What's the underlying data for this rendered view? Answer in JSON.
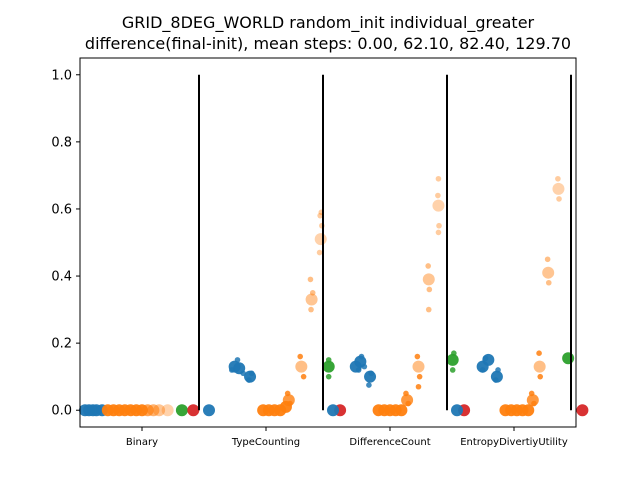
{
  "chart_data": {
    "type": "scatter",
    "title_lines": [
      "GRID_8DEG_WORLD random_init individual_greater",
      "difference(final-init), mean steps: 0.00, 62.10, 82.40, 129.70"
    ],
    "categories": [
      "Binary",
      "TypeCounting",
      "DifferenceCount",
      "EntropyDivertiyUtility"
    ],
    "ylim": [
      -0.05,
      1.05
    ],
    "yticks": [
      "0.0",
      "0.2",
      "0.4",
      "0.6",
      "0.8",
      "1.0"
    ],
    "ytick_values": [
      0.0,
      0.2,
      0.4,
      0.6,
      0.8,
      1.0
    ],
    "grid": false,
    "separators_y": [
      0.0,
      1.0
    ],
    "colors": {
      "blue": "#1f77b4",
      "orange": "#ff7f0e",
      "green": "#2ca02c",
      "red": "#d62728"
    },
    "groups": [
      {
        "category": "Binary",
        "points": [
          {
            "x": -1.0,
            "y": 0.0,
            "c": "blue",
            "s": "big"
          },
          {
            "x": -0.93,
            "y": 0.0,
            "c": "blue",
            "s": "big"
          },
          {
            "x": -0.86,
            "y": 0.0,
            "c": "blue",
            "s": "big"
          },
          {
            "x": -0.8,
            "y": 0.0,
            "c": "blue",
            "s": "big"
          },
          {
            "x": -0.7,
            "y": 0.0,
            "c": "blue",
            "s": "big"
          },
          {
            "x": -0.6,
            "y": 0.0,
            "c": "orange",
            "s": "big"
          },
          {
            "x": -0.5,
            "y": 0.0,
            "c": "orange",
            "s": "big"
          },
          {
            "x": -0.4,
            "y": 0.0,
            "c": "orange",
            "s": "big"
          },
          {
            "x": -0.3,
            "y": 0.0,
            "c": "orange",
            "s": "big"
          },
          {
            "x": -0.2,
            "y": 0.0,
            "c": "orange",
            "s": "big"
          },
          {
            "x": -0.1,
            "y": 0.0,
            "c": "orange",
            "s": "big"
          },
          {
            "x": 0.0,
            "y": 0.0,
            "c": "orange",
            "s": "big"
          },
          {
            "x": 0.1,
            "y": 0.0,
            "c": "orange",
            "s": "big",
            "a": 0.7
          },
          {
            "x": 0.2,
            "y": 0.0,
            "c": "orange",
            "s": "big",
            "a": 0.6
          },
          {
            "x": 0.3,
            "y": 0.0,
            "c": "orange",
            "s": "big",
            "a": 0.45
          },
          {
            "x": 0.45,
            "y": 0.0,
            "c": "orange",
            "s": "big",
            "a": 0.35
          },
          {
            "x": 0.7,
            "y": 0.0,
            "c": "green",
            "s": "big"
          },
          {
            "x": 0.9,
            "y": 0.0,
            "c": "red",
            "s": "big"
          }
        ]
      },
      {
        "category": "TypeCounting",
        "points": [
          {
            "x": -1.0,
            "y": 0.0,
            "c": "blue",
            "s": "big"
          },
          {
            "x": -0.55,
            "y": 0.13,
            "c": "blue",
            "s": "big"
          },
          {
            "x": -0.47,
            "y": 0.125,
            "c": "blue",
            "s": "big"
          },
          {
            "x": -0.6,
            "y": 0.12,
            "c": "blue",
            "s": "small"
          },
          {
            "x": -0.5,
            "y": 0.15,
            "c": "blue",
            "s": "small"
          },
          {
            "x": -0.4,
            "y": 0.11,
            "c": "blue",
            "s": "small"
          },
          {
            "x": -0.28,
            "y": 0.1,
            "c": "blue",
            "s": "big"
          },
          {
            "x": -0.3,
            "y": 0.09,
            "c": "blue",
            "s": "small"
          },
          {
            "x": -0.25,
            "y": 0.11,
            "c": "blue",
            "s": "small"
          },
          {
            "x": -0.05,
            "y": 0.0,
            "c": "orange",
            "s": "big"
          },
          {
            "x": 0.05,
            "y": 0.0,
            "c": "orange",
            "s": "big"
          },
          {
            "x": 0.15,
            "y": 0.0,
            "c": "orange",
            "s": "big"
          },
          {
            "x": 0.25,
            "y": 0.0,
            "c": "orange",
            "s": "big"
          },
          {
            "x": 0.35,
            "y": 0.01,
            "c": "orange",
            "s": "big"
          },
          {
            "x": 0.4,
            "y": 0.03,
            "c": "orange",
            "s": "big",
            "a": 0.8
          },
          {
            "x": 0.38,
            "y": 0.05,
            "c": "orange",
            "s": "small"
          },
          {
            "x": 0.42,
            "y": 0.02,
            "c": "orange",
            "s": "small"
          },
          {
            "x": 0.62,
            "y": 0.13,
            "c": "orange",
            "s": "big",
            "a": 0.5
          },
          {
            "x": 0.6,
            "y": 0.16,
            "c": "orange",
            "s": "small"
          },
          {
            "x": 0.66,
            "y": 0.1,
            "c": "orange",
            "s": "small"
          },
          {
            "x": 0.8,
            "y": 0.33,
            "c": "orange",
            "s": "big",
            "a": 0.45
          },
          {
            "x": 0.78,
            "y": 0.39,
            "c": "orange",
            "s": "small",
            "a": 0.5
          },
          {
            "x": 0.79,
            "y": 0.3,
            "c": "orange",
            "s": "small",
            "a": 0.5
          },
          {
            "x": 0.82,
            "y": 0.35,
            "c": "orange",
            "s": "small",
            "a": 0.5
          },
          {
            "x": 0.96,
            "y": 0.51,
            "c": "orange",
            "s": "big",
            "a": 0.35
          },
          {
            "x": 0.95,
            "y": 0.58,
            "c": "orange",
            "s": "small",
            "a": 0.4
          },
          {
            "x": 0.97,
            "y": 0.59,
            "c": "orange",
            "s": "small",
            "a": 0.4
          },
          {
            "x": 0.98,
            "y": 0.55,
            "c": "orange",
            "s": "small",
            "a": 0.4
          },
          {
            "x": 0.94,
            "y": 0.47,
            "c": "orange",
            "s": "small",
            "a": 0.4
          },
          {
            "x": 1.1,
            "y": 0.13,
            "c": "green",
            "s": "big"
          },
          {
            "x": 1.1,
            "y": 0.15,
            "c": "green",
            "s": "small"
          },
          {
            "x": 1.1,
            "y": 0.1,
            "c": "green",
            "s": "small"
          },
          {
            "x": 1.3,
            "y": 0.0,
            "c": "red",
            "s": "big"
          }
        ]
      },
      {
        "category": "DifferenceCount",
        "points": [
          {
            "x": -1.0,
            "y": 0.0,
            "c": "blue",
            "s": "big"
          },
          {
            "x": -0.6,
            "y": 0.13,
            "c": "blue",
            "s": "big"
          },
          {
            "x": -0.52,
            "y": 0.145,
            "c": "blue",
            "s": "big"
          },
          {
            "x": -0.5,
            "y": 0.16,
            "c": "blue",
            "s": "small"
          },
          {
            "x": -0.55,
            "y": 0.12,
            "c": "blue",
            "s": "small"
          },
          {
            "x": -0.45,
            "y": 0.13,
            "c": "blue",
            "s": "small"
          },
          {
            "x": -0.35,
            "y": 0.1,
            "c": "blue",
            "s": "big"
          },
          {
            "x": -0.37,
            "y": 0.075,
            "c": "blue",
            "s": "small"
          },
          {
            "x": -0.33,
            "y": 0.11,
            "c": "blue",
            "s": "small"
          },
          {
            "x": -0.2,
            "y": 0.0,
            "c": "orange",
            "s": "big"
          },
          {
            "x": -0.1,
            "y": 0.0,
            "c": "orange",
            "s": "big"
          },
          {
            "x": 0.0,
            "y": 0.0,
            "c": "orange",
            "s": "big"
          },
          {
            "x": 0.1,
            "y": 0.0,
            "c": "orange",
            "s": "big"
          },
          {
            "x": 0.2,
            "y": 0.0,
            "c": "orange",
            "s": "big"
          },
          {
            "x": 0.3,
            "y": 0.03,
            "c": "orange",
            "s": "big",
            "a": 0.8
          },
          {
            "x": 0.28,
            "y": 0.05,
            "c": "orange",
            "s": "small"
          },
          {
            "x": 0.32,
            "y": 0.02,
            "c": "orange",
            "s": "small"
          },
          {
            "x": 0.5,
            "y": 0.13,
            "c": "orange",
            "s": "big",
            "a": 0.5
          },
          {
            "x": 0.48,
            "y": 0.16,
            "c": "orange",
            "s": "small"
          },
          {
            "x": 0.52,
            "y": 0.1,
            "c": "orange",
            "s": "small"
          },
          {
            "x": 0.5,
            "y": 0.07,
            "c": "orange",
            "s": "small"
          },
          {
            "x": 0.68,
            "y": 0.39,
            "c": "orange",
            "s": "big",
            "a": 0.45
          },
          {
            "x": 0.67,
            "y": 0.43,
            "c": "orange",
            "s": "small",
            "a": 0.5
          },
          {
            "x": 0.69,
            "y": 0.36,
            "c": "orange",
            "s": "small",
            "a": 0.5
          },
          {
            "x": 0.68,
            "y": 0.3,
            "c": "orange",
            "s": "small",
            "a": 0.5
          },
          {
            "x": 0.85,
            "y": 0.61,
            "c": "orange",
            "s": "big",
            "a": 0.35
          },
          {
            "x": 0.85,
            "y": 0.69,
            "c": "orange",
            "s": "small",
            "a": 0.4
          },
          {
            "x": 0.84,
            "y": 0.64,
            "c": "orange",
            "s": "small",
            "a": 0.4
          },
          {
            "x": 0.86,
            "y": 0.55,
            "c": "orange",
            "s": "small",
            "a": 0.4
          },
          {
            "x": 0.85,
            "y": 0.53,
            "c": "orange",
            "s": "small",
            "a": 0.4
          },
          {
            "x": 1.1,
            "y": 0.15,
            "c": "green",
            "s": "big"
          },
          {
            "x": 1.12,
            "y": 0.17,
            "c": "green",
            "s": "small"
          },
          {
            "x": 1.1,
            "y": 0.12,
            "c": "green",
            "s": "small"
          },
          {
            "x": 1.3,
            "y": 0.0,
            "c": "red",
            "s": "big"
          }
        ]
      },
      {
        "category": "EntropyDivertiyUtility",
        "points": [
          {
            "x": -1.0,
            "y": 0.0,
            "c": "blue",
            "s": "big"
          },
          {
            "x": -0.55,
            "y": 0.13,
            "c": "blue",
            "s": "big"
          },
          {
            "x": -0.45,
            "y": 0.15,
            "c": "blue",
            "s": "big"
          },
          {
            "x": -0.5,
            "y": 0.155,
            "c": "blue",
            "s": "small"
          },
          {
            "x": -0.55,
            "y": 0.12,
            "c": "blue",
            "s": "small"
          },
          {
            "x": -0.3,
            "y": 0.1,
            "c": "blue",
            "s": "big"
          },
          {
            "x": -0.32,
            "y": 0.09,
            "c": "blue",
            "s": "small"
          },
          {
            "x": -0.28,
            "y": 0.12,
            "c": "blue",
            "s": "small"
          },
          {
            "x": -0.15,
            "y": 0.0,
            "c": "orange",
            "s": "big"
          },
          {
            "x": -0.05,
            "y": 0.0,
            "c": "orange",
            "s": "big"
          },
          {
            "x": 0.05,
            "y": 0.0,
            "c": "orange",
            "s": "big"
          },
          {
            "x": 0.15,
            "y": 0.0,
            "c": "orange",
            "s": "big"
          },
          {
            "x": 0.25,
            "y": 0.0,
            "c": "orange",
            "s": "big"
          },
          {
            "x": 0.33,
            "y": 0.03,
            "c": "orange",
            "s": "big",
            "a": 0.8
          },
          {
            "x": 0.31,
            "y": 0.05,
            "c": "orange",
            "s": "small"
          },
          {
            "x": 0.35,
            "y": 0.02,
            "c": "orange",
            "s": "small"
          },
          {
            "x": 0.45,
            "y": 0.13,
            "c": "orange",
            "s": "big",
            "a": 0.5
          },
          {
            "x": 0.44,
            "y": 0.17,
            "c": "orange",
            "s": "small"
          },
          {
            "x": 0.46,
            "y": 0.1,
            "c": "orange",
            "s": "small"
          },
          {
            "x": 0.6,
            "y": 0.41,
            "c": "orange",
            "s": "big",
            "a": 0.45
          },
          {
            "x": 0.59,
            "y": 0.45,
            "c": "orange",
            "s": "small",
            "a": 0.5
          },
          {
            "x": 0.61,
            "y": 0.38,
            "c": "orange",
            "s": "small",
            "a": 0.5
          },
          {
            "x": 0.78,
            "y": 0.66,
            "c": "orange",
            "s": "big",
            "a": 0.35
          },
          {
            "x": 0.77,
            "y": 0.69,
            "c": "orange",
            "s": "small",
            "a": 0.4
          },
          {
            "x": 0.79,
            "y": 0.63,
            "c": "orange",
            "s": "small",
            "a": 0.4
          },
          {
            "x": 0.95,
            "y": 0.155,
            "c": "green",
            "s": "big"
          },
          {
            "x": 1.2,
            "y": 0.0,
            "c": "red",
            "s": "big"
          }
        ]
      }
    ]
  }
}
